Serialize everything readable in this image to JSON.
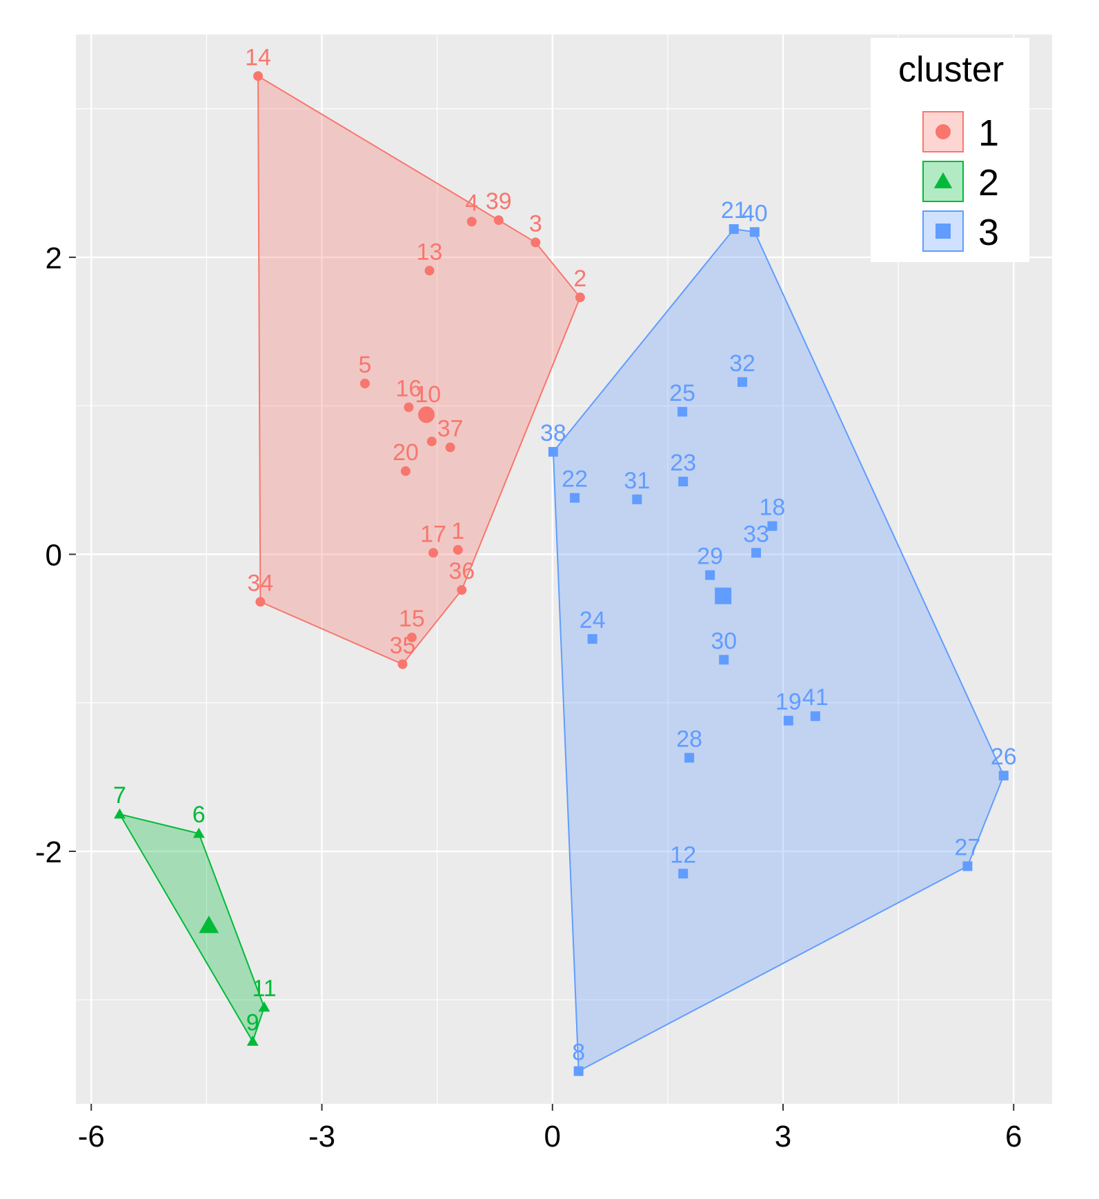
{
  "chart_data": {
    "type": "scatter",
    "title": "",
    "xlabel": "",
    "ylabel": "",
    "xlim": [
      -6.2,
      6.5
    ],
    "ylim": [
      -3.7,
      3.5
    ],
    "x_ticks": [
      -6,
      -3,
      0,
      3,
      6
    ],
    "x_tick_labels": [
      "-6",
      "-3",
      "0",
      "3",
      "6"
    ],
    "y_ticks": [
      -2,
      0,
      2
    ],
    "y_tick_labels": [
      "-2",
      "0",
      "2"
    ],
    "grid": true,
    "legend": {
      "title": "cluster",
      "position": "top-right",
      "entries": [
        "1",
        "2",
        "3"
      ]
    },
    "colors": {
      "1": "#F8766D",
      "2": "#00BA38",
      "3": "#619CFF",
      "panel": "#EBEBEB",
      "grid": "#FFFFFF"
    },
    "series": [
      {
        "name": "1",
        "shape": "circle",
        "points": [
          {
            "label": "14",
            "x": -3.83,
            "y": 3.22
          },
          {
            "label": "4",
            "x": -1.05,
            "y": 2.24
          },
          {
            "label": "39",
            "x": -0.7,
            "y": 2.25
          },
          {
            "label": "3",
            "x": -0.22,
            "y": 2.1
          },
          {
            "label": "13",
            "x": -1.6,
            "y": 1.91
          },
          {
            "label": "2",
            "x": 0.36,
            "y": 1.73
          },
          {
            "label": "5",
            "x": -2.44,
            "y": 1.15
          },
          {
            "label": "16",
            "x": -1.87,
            "y": 0.99
          },
          {
            "label": "10",
            "x": -1.62,
            "y": 0.95
          },
          {
            "label": "37",
            "x": -1.33,
            "y": 0.72
          },
          {
            "label": "20",
            "x": -1.91,
            "y": 0.56
          },
          {
            "label": "",
            "x": -1.57,
            "y": 0.76
          },
          {
            "label": "17",
            "x": -1.55,
            "y": 0.01
          },
          {
            "label": "1",
            "x": -1.23,
            "y": 0.03
          },
          {
            "label": "36",
            "x": -1.18,
            "y": -0.24
          },
          {
            "label": "34",
            "x": -3.8,
            "y": -0.32
          },
          {
            "label": "15",
            "x": -1.83,
            "y": -0.56
          },
          {
            "label": "35",
            "x": -1.95,
            "y": -0.74
          }
        ],
        "hull": [
          "14",
          "39",
          "3",
          "2",
          "36",
          "35",
          "34"
        ],
        "centroid": {
          "x": -1.64,
          "y": 0.94
        }
      },
      {
        "name": "2",
        "shape": "triangle",
        "points": [
          {
            "label": "7",
            "x": -5.63,
            "y": -1.75
          },
          {
            "label": "6",
            "x": -4.6,
            "y": -1.88
          },
          {
            "label": "11",
            "x": -3.75,
            "y": -3.05
          },
          {
            "label": "9",
            "x": -3.9,
            "y": -3.28
          }
        ],
        "hull": [
          "7",
          "6",
          "11",
          "9"
        ],
        "centroid": {
          "x": -4.47,
          "y": -2.5
        }
      },
      {
        "name": "3",
        "shape": "square",
        "points": [
          {
            "label": "21",
            "x": 2.36,
            "y": 2.19
          },
          {
            "label": "40",
            "x": 2.63,
            "y": 2.17
          },
          {
            "label": "32",
            "x": 2.47,
            "y": 1.16
          },
          {
            "label": "25",
            "x": 1.69,
            "y": 0.96
          },
          {
            "label": "38",
            "x": 0.01,
            "y": 0.69
          },
          {
            "label": "22",
            "x": 0.29,
            "y": 0.38
          },
          {
            "label": "31",
            "x": 1.1,
            "y": 0.37
          },
          {
            "label": "23",
            "x": 1.7,
            "y": 0.49
          },
          {
            "label": "18",
            "x": 2.86,
            "y": 0.19
          },
          {
            "label": "33",
            "x": 2.65,
            "y": 0.01
          },
          {
            "label": "29",
            "x": 2.05,
            "y": -0.14
          },
          {
            "label": "24",
            "x": 0.52,
            "y": -0.57
          },
          {
            "label": "30",
            "x": 2.23,
            "y": -0.71
          },
          {
            "label": "19",
            "x": 3.07,
            "y": -1.12
          },
          {
            "label": "41",
            "x": 3.42,
            "y": -1.09
          },
          {
            "label": "28",
            "x": 1.78,
            "y": -1.37
          },
          {
            "label": "26",
            "x": 5.87,
            "y": -1.49
          },
          {
            "label": "12",
            "x": 1.7,
            "y": -2.15
          },
          {
            "label": "27",
            "x": 5.4,
            "y": -2.1
          },
          {
            "label": "8",
            "x": 0.34,
            "y": -3.48
          }
        ],
        "hull": [
          "21",
          "40",
          "26",
          "27",
          "8",
          "38"
        ],
        "centroid": {
          "x": 2.22,
          "y": -0.28
        }
      }
    ]
  }
}
